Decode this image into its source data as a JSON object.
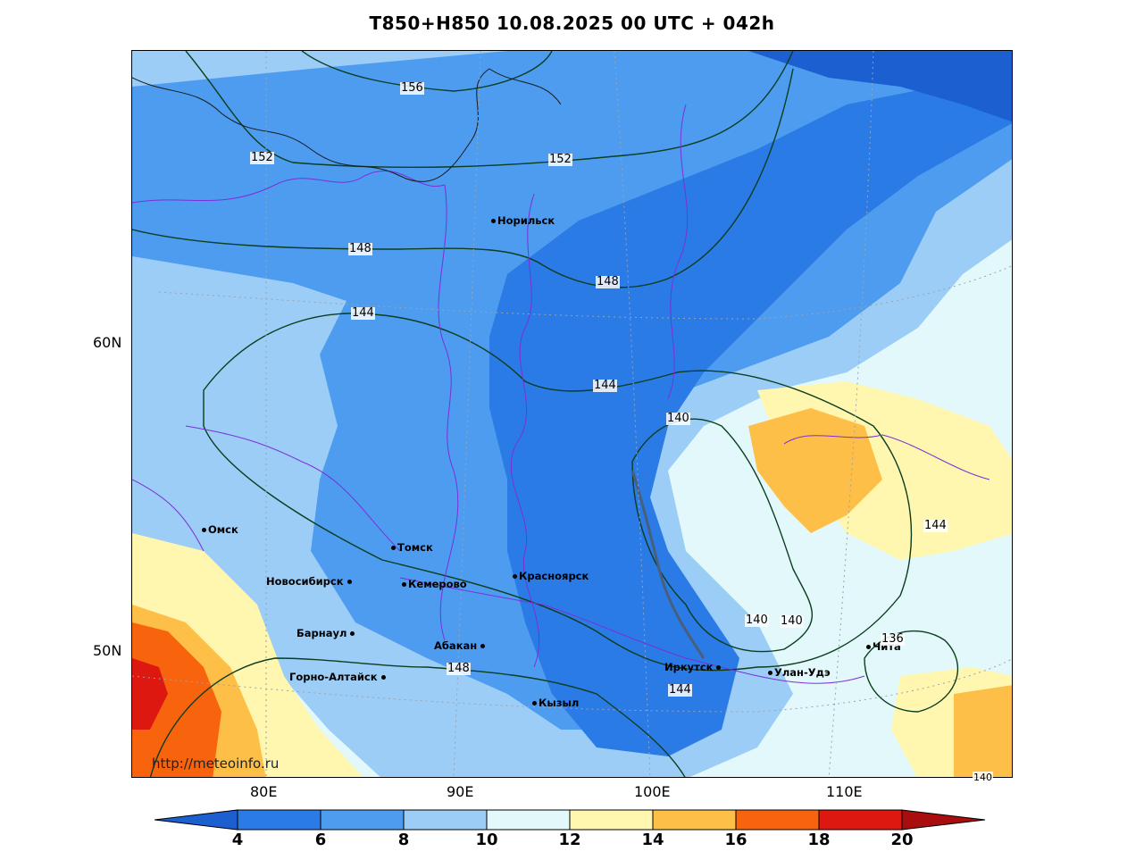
{
  "title": "T850+H850 10.08.2025 00 UTC + 042h",
  "watermark": "http://meteoinfo.ru",
  "axes": {
    "latitudes": [
      "60N",
      "50N"
    ],
    "longitudes": [
      "80E",
      "90E",
      "100E",
      "110E"
    ]
  },
  "cities": [
    {
      "name": "Норильск"
    },
    {
      "name": "Омск"
    },
    {
      "name": "Томск"
    },
    {
      "name": "Новосибирск"
    },
    {
      "name": "Кемерово"
    },
    {
      "name": "Красноярск"
    },
    {
      "name": "Барнаул"
    },
    {
      "name": "Абакан"
    },
    {
      "name": "Горно-Алтайск"
    },
    {
      "name": "Кызыл"
    },
    {
      "name": "Иркутск"
    },
    {
      "name": "Улан-Удэ"
    },
    {
      "name": "Чита"
    }
  ],
  "contour_labels": [
    "156",
    "152",
    "152",
    "148",
    "148",
    "144",
    "144",
    "140",
    "144",
    "140",
    "140",
    "148",
    "144",
    "136",
    "140"
  ],
  "colorbar": {
    "ticks": [
      "4",
      "6",
      "8",
      "10",
      "12",
      "14",
      "16",
      "18",
      "20"
    ],
    "colors": [
      "#1c5fd0",
      "#2b7be6",
      "#4e9cf0",
      "#9ccdf6",
      "#e2f8fb",
      "#fff7b0",
      "#fdbf47",
      "#f8640d",
      "#dd1811",
      "#a80e0e"
    ]
  }
}
